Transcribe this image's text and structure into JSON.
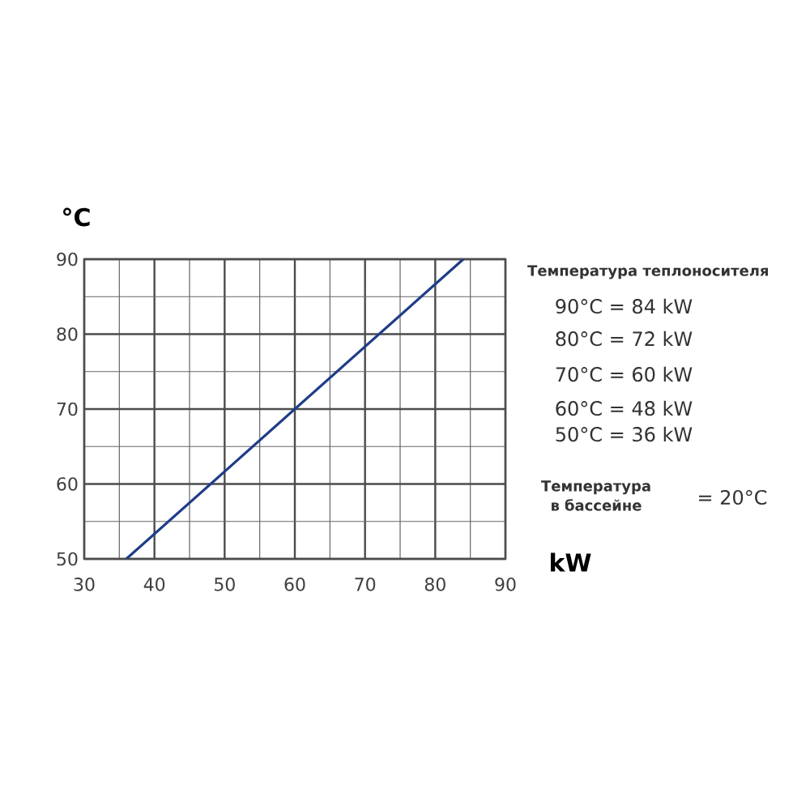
{
  "chart_data": {
    "type": "line",
    "xlabel": "kW",
    "ylabel": "°C",
    "x": [
      36,
      84
    ],
    "series": [
      {
        "color": "#1f3c88",
        "values": [
          50,
          90
        ]
      }
    ],
    "xlim": [
      30,
      90
    ],
    "ylim": [
      50,
      90
    ],
    "xticks": [
      30,
      {
        "value": 35,
        "label": null
      },
      40,
      {
        "value": 45,
        "label": null
      },
      50,
      {
        "value": 55,
        "label": null
      },
      60,
      {
        "value": 65,
        "label": null
      },
      70,
      {
        "value": 75,
        "label": null
      },
      80,
      {
        "value": 85,
        "label": null
      },
      90
    ],
    "yticks": [
      50,
      {
        "value": 55,
        "label": null
      },
      60,
      {
        "value": 65,
        "label": null
      },
      70,
      {
        "value": 75,
        "label": null
      },
      80,
      {
        "value": 85,
        "label": null
      },
      90
    ],
    "grid": true,
    "marker": "none",
    "line_style": "solid",
    "annotations": [
      "**Температура теплоносителя**",
      "90°C = 84 kW",
      "80°C = 72 kW",
      "70°C = 60 kW",
      "60°C = 48 kW",
      "50°C = 36 kW",
      "**Температура в бассейне**",
      "= 20°C"
    ]
  }
}
